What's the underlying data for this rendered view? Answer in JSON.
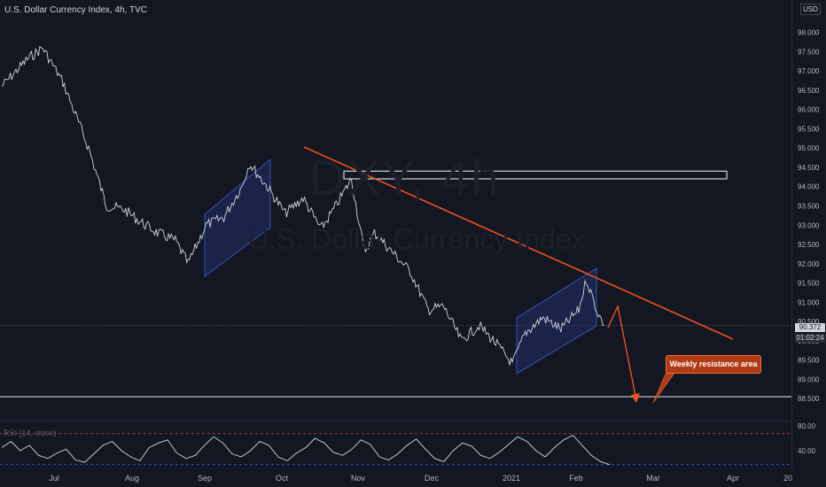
{
  "header": {
    "title": "U.S. Dollar Currency Index, 4h, TVC",
    "currency": "USD"
  },
  "watermark": {
    "symbol": "DXY, 4h",
    "name": "U.S. Dollar Currency Index"
  },
  "price_scale": {
    "labels": [
      "98.000",
      "97.500",
      "97.000",
      "96.500",
      "96.000",
      "95.500",
      "95.000",
      "94.500",
      "94.000",
      "93.500",
      "93.000",
      "92.500",
      "92.000",
      "91.500",
      "91.000",
      "90.500",
      "90.000",
      "89.500",
      "89.000",
      "88.500"
    ],
    "last_price": "90.372",
    "countdown": "01:02:24"
  },
  "time_axis": {
    "labels": [
      "Jul",
      "Aug",
      "Sep",
      "Oct",
      "Nov",
      "Dec",
      "2021",
      "Feb",
      "Mar",
      "Apr",
      "20"
    ]
  },
  "annotation": {
    "callout_text": "Weekly resistance area"
  },
  "indicator": {
    "label": "RSI (14, close)",
    "labels": [
      "80.00",
      "40.00"
    ]
  },
  "colors": {
    "background": "#131722",
    "price_line": "#d1d4dc",
    "trendline": "#f2501e",
    "channel": "#2a3b8f",
    "callout": "#b03a13",
    "rsi_line": "#d1d4dc",
    "rsi_upper": "#f23645",
    "rsi_lower": "#2962ff"
  },
  "chart_data": [
    {
      "type": "line",
      "title": "U.S. Dollar Currency Index, 4h, TVC",
      "x_ticks": [
        "Jul",
        "Aug",
        "Sep",
        "Oct",
        "Nov",
        "Dec",
        "2021",
        "Feb",
        "Mar",
        "Apr"
      ],
      "ylim": [
        88.3,
        98.3
      ],
      "x": [
        "2020-06-20",
        "2020-06-30",
        "2020-07-06",
        "2020-07-14",
        "2020-07-24",
        "2020-07-31",
        "2020-08-07",
        "2020-08-13",
        "2020-08-20",
        "2020-08-27",
        "2020-09-01",
        "2020-09-08",
        "2020-09-15",
        "2020-09-22",
        "2020-09-25",
        "2020-10-02",
        "2020-10-09",
        "2020-10-16",
        "2020-10-23",
        "2020-10-28",
        "2020-11-04",
        "2020-11-09",
        "2020-11-13",
        "2020-11-20",
        "2020-11-27",
        "2020-12-04",
        "2020-12-10",
        "2020-12-17",
        "2020-12-24",
        "2020-12-31",
        "2021-01-06",
        "2021-01-11",
        "2021-01-18",
        "2021-01-25",
        "2021-02-01",
        "2021-02-04",
        "2021-02-08",
        "2021-02-11"
      ],
      "values": [
        96.6,
        97.3,
        97.6,
        96.7,
        95.0,
        93.5,
        93.4,
        93.1,
        92.8,
        92.6,
        92.0,
        93.0,
        93.2,
        94.0,
        94.6,
        94.0,
        93.3,
        93.7,
        92.9,
        93.4,
        94.2,
        92.3,
        92.8,
        92.3,
        91.8,
        90.8,
        90.9,
        90.0,
        90.4,
        89.9,
        89.4,
        90.2,
        90.6,
        90.3,
        90.8,
        91.6,
        90.8,
        90.4
      ]
    },
    {
      "type": "line",
      "title": "RSI (14, close)",
      "ylim": [
        25,
        85
      ],
      "levels": [
        70,
        30
      ],
      "values": [
        52,
        60,
        48,
        55,
        42,
        38,
        45,
        50,
        36,
        33,
        44,
        55,
        60,
        48,
        40,
        35,
        52,
        58,
        62,
        45,
        38,
        42,
        55,
        66,
        58,
        44,
        40,
        48,
        60,
        55,
        40,
        35,
        45,
        52,
        64,
        58,
        46,
        42,
        50,
        62,
        56,
        40,
        36,
        44,
        55,
        63,
        50,
        38,
        34,
        48,
        58,
        54,
        42,
        38,
        46,
        56,
        66,
        60,
        48,
        40,
        52,
        62,
        68,
        55,
        42,
        34,
        30
      ]
    },
    {
      "type": "drawings",
      "trendline": [
        {
          "x": "2020-10-15",
          "y": 95.2
        },
        {
          "x": "2021-03-25",
          "y": 89.9
        }
      ],
      "resistance_box": {
        "x_start": "2020-11-01",
        "x_end": "2021-03-31",
        "y_low": 94.2,
        "y_high": 94.4
      },
      "support_line": 88.55,
      "projection": [
        {
          "x": "2021-02-11",
          "y": 90.4
        },
        {
          "x": "2021-02-14",
          "y": 91.0
        },
        {
          "x": "2021-02-25",
          "y": 88.5
        }
      ]
    }
  ]
}
